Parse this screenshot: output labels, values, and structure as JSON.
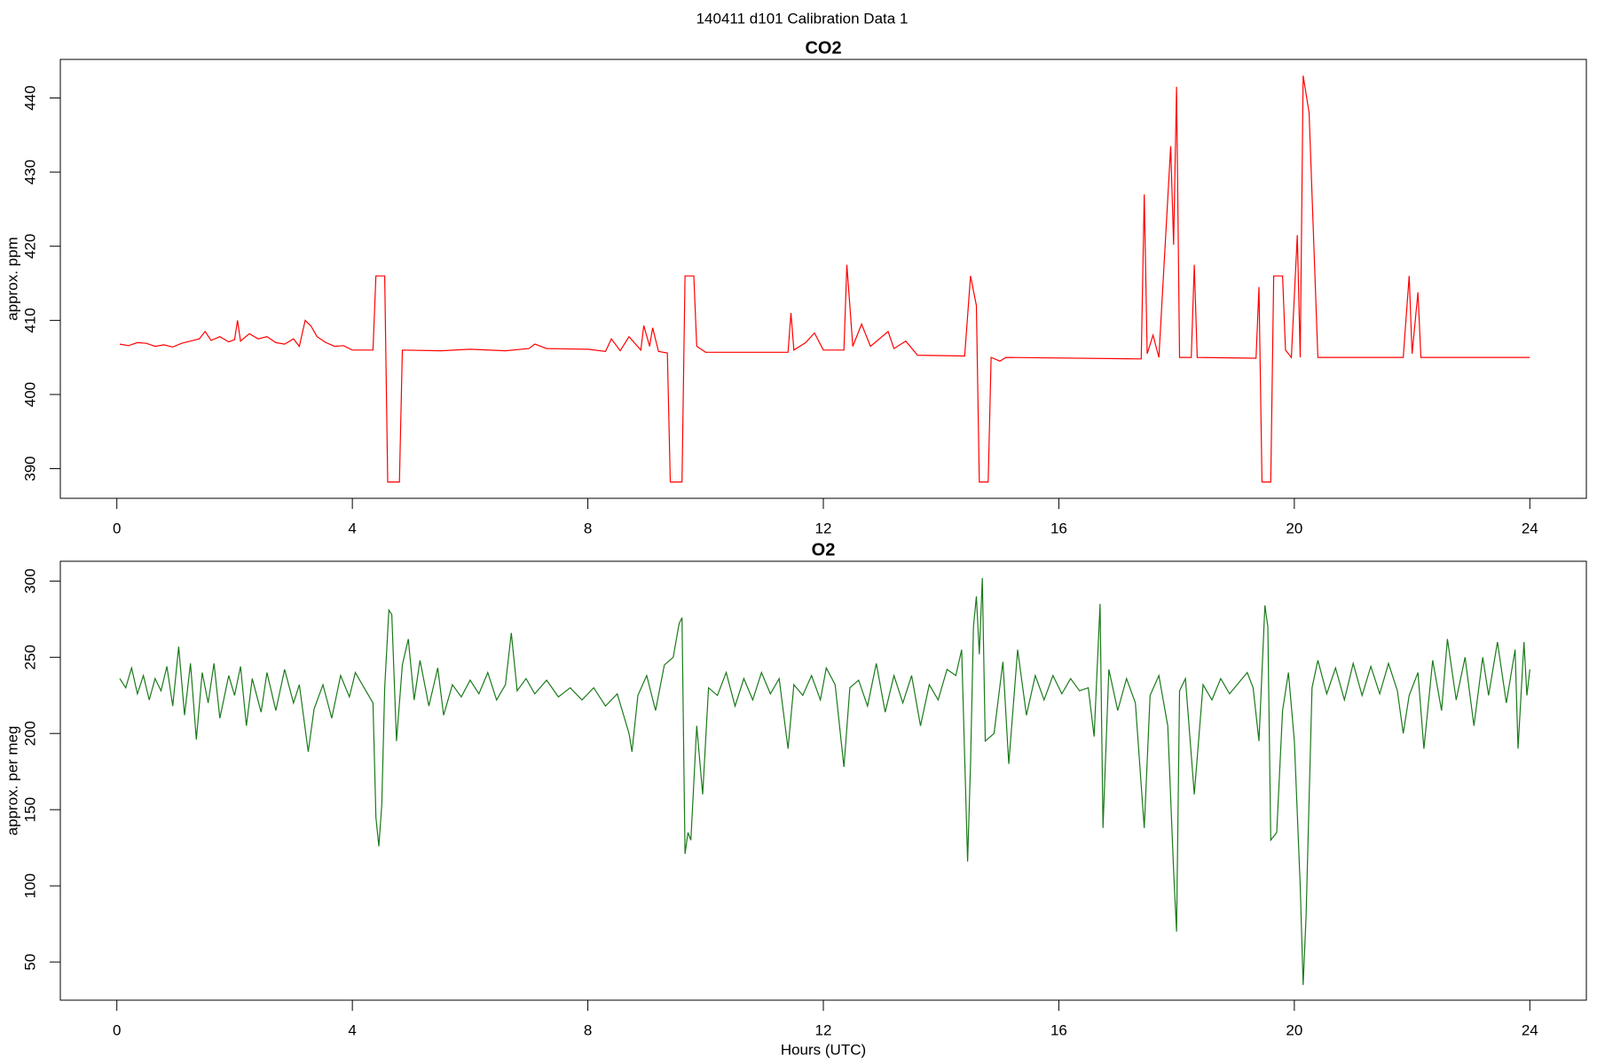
{
  "title": "140411   d101   Calibration Data 1",
  "chart_data": [
    {
      "type": "line",
      "title": "CO2",
      "ylabel": "approx. ppm",
      "color": "#ff0000",
      "xlim": [
        -0.96,
        24.96
      ],
      "ylim": [
        386.0,
        445.2
      ],
      "xticks": [
        0,
        4,
        8,
        12,
        16,
        20,
        24
      ],
      "yticks": [
        390,
        400,
        410,
        420,
        430,
        440
      ],
      "x": [
        0.05,
        0.2,
        0.35,
        0.5,
        0.65,
        0.8,
        0.95,
        1.1,
        1.25,
        1.4,
        1.5,
        1.6,
        1.75,
        1.9,
        2.0,
        2.05,
        2.1,
        2.25,
        2.4,
        2.55,
        2.7,
        2.85,
        3.0,
        3.1,
        3.2,
        3.3,
        3.4,
        3.55,
        3.7,
        3.85,
        4.0,
        4.35,
        4.4,
        4.55,
        4.6,
        4.8,
        4.85,
        5.5,
        6.0,
        6.6,
        7.0,
        7.1,
        7.3,
        8.0,
        8.3,
        8.4,
        8.55,
        8.7,
        8.9,
        8.95,
        9.05,
        9.1,
        9.2,
        9.35,
        9.4,
        9.6,
        9.65,
        9.8,
        9.85,
        10.0,
        11.4,
        11.45,
        11.5,
        11.7,
        11.85,
        12.0,
        12.35,
        12.4,
        12.5,
        12.65,
        12.8,
        13.1,
        13.2,
        13.4,
        13.6,
        14.4,
        14.5,
        14.6,
        14.65,
        14.8,
        14.85,
        15.0,
        15.1,
        17.4,
        17.45,
        17.5,
        17.6,
        17.7,
        17.9,
        17.95,
        18.0,
        18.05,
        18.25,
        18.3,
        18.35,
        19.35,
        19.4,
        19.45,
        19.6,
        19.65,
        19.8,
        19.85,
        19.95,
        20.05,
        20.1,
        20.15,
        20.25,
        20.4,
        21.85,
        21.95,
        22.0,
        22.1,
        22.15,
        24.0
      ],
      "values": [
        406.8,
        406.6,
        407.0,
        406.9,
        406.5,
        406.7,
        406.4,
        406.9,
        407.2,
        407.5,
        408.5,
        407.3,
        407.8,
        407.1,
        407.4,
        410,
        407.2,
        408.2,
        407.5,
        407.8,
        407.0,
        406.8,
        407.5,
        406.5,
        410,
        409.2,
        407.8,
        407.0,
        406.5,
        406.6,
        406.0,
        406.0,
        416,
        416,
        388.2,
        388.2,
        406,
        405.9,
        406.1,
        405.9,
        406.2,
        406.8,
        406.2,
        406.1,
        405.8,
        407.5,
        405.9,
        407.8,
        406,
        409.3,
        406.5,
        409,
        405.8,
        405.6,
        388.2,
        388.2,
        416,
        416,
        406.5,
        405.7,
        405.7,
        411,
        406,
        407,
        408.3,
        406,
        406,
        417.5,
        406.5,
        409.5,
        406.5,
        408.5,
        406.2,
        407.2,
        405.3,
        405.2,
        416,
        412,
        388.2,
        388.2,
        405,
        404.5,
        405,
        404.8,
        427,
        405.5,
        408,
        405,
        433.5,
        420.2,
        441.5,
        405,
        405,
        417.5,
        405,
        404.9,
        414.5,
        388.2,
        388.2,
        416,
        416,
        406,
        405,
        421.5,
        405,
        443,
        438,
        405,
        405,
        416,
        405.5,
        413.8,
        405,
        405
      ]
    },
    {
      "type": "line",
      "title": "O2",
      "ylabel": "approx. per meg",
      "xlabel": "Hours (UTC)",
      "color": "#1a7a1a",
      "xlim": [
        -0.96,
        24.96
      ],
      "ylim": [
        25,
        313
      ],
      "xticks": [
        0,
        4,
        8,
        12,
        16,
        20,
        24
      ],
      "yticks": [
        50,
        100,
        150,
        200,
        250,
        300
      ],
      "x": [
        0.05,
        0.15,
        0.25,
        0.35,
        0.45,
        0.55,
        0.65,
        0.75,
        0.85,
        0.95,
        1.05,
        1.15,
        1.25,
        1.35,
        1.45,
        1.55,
        1.65,
        1.75,
        1.9,
        2.0,
        2.1,
        2.2,
        2.3,
        2.45,
        2.55,
        2.7,
        2.85,
        3.0,
        3.1,
        3.25,
        3.35,
        3.5,
        3.65,
        3.8,
        3.95,
        4.05,
        4.2,
        4.35,
        4.4,
        4.45,
        4.5,
        4.55,
        4.62,
        4.67,
        4.75,
        4.85,
        4.95,
        5.05,
        5.15,
        5.3,
        5.45,
        5.55,
        5.7,
        5.85,
        6.0,
        6.15,
        6.3,
        6.45,
        6.6,
        6.7,
        6.8,
        6.95,
        7.1,
        7.3,
        7.5,
        7.7,
        7.9,
        8.1,
        8.3,
        8.5,
        8.7,
        8.75,
        8.85,
        9.0,
        9.15,
        9.3,
        9.45,
        9.55,
        9.6,
        9.65,
        9.7,
        9.75,
        9.85,
        9.95,
        10.05,
        10.2,
        10.35,
        10.5,
        10.65,
        10.8,
        10.95,
        11.1,
        11.25,
        11.4,
        11.5,
        11.65,
        11.8,
        11.95,
        12.05,
        12.2,
        12.35,
        12.45,
        12.6,
        12.75,
        12.9,
        13.05,
        13.2,
        13.35,
        13.5,
        13.65,
        13.8,
        13.95,
        14.1,
        14.25,
        14.35,
        14.45,
        14.5,
        14.55,
        14.6,
        14.65,
        14.7,
        14.75,
        14.9,
        15.05,
        15.15,
        15.3,
        15.45,
        15.6,
        15.75,
        15.9,
        16.05,
        16.2,
        16.35,
        16.5,
        16.6,
        16.7,
        16.75,
        16.85,
        17.0,
        17.15,
        17.3,
        17.45,
        17.55,
        17.7,
        17.85,
        17.95,
        18.0,
        18.05,
        18.15,
        18.3,
        18.45,
        18.6,
        18.75,
        18.9,
        19.05,
        19.2,
        19.3,
        19.4,
        19.5,
        19.55,
        19.6,
        19.7,
        19.8,
        19.9,
        20.0,
        20.1,
        20.15,
        20.2,
        20.3,
        20.4,
        20.55,
        20.7,
        20.85,
        21.0,
        21.15,
        21.3,
        21.45,
        21.6,
        21.75,
        21.85,
        21.95,
        22.1,
        22.2,
        22.35,
        22.5,
        22.6,
        22.75,
        22.9,
        23.05,
        23.2,
        23.3,
        23.45,
        23.6,
        23.75,
        23.8,
        23.9,
        23.95,
        24.0
      ],
      "values": [
        236,
        230,
        243,
        226,
        238,
        222,
        236,
        228,
        244,
        218,
        257,
        212,
        246,
        196,
        240,
        220,
        246,
        210,
        238,
        225,
        244,
        205,
        236,
        214,
        240,
        215,
        242,
        220,
        232,
        188,
        216,
        232,
        210,
        238,
        224,
        240,
        230,
        220,
        145,
        126,
        153,
        230,
        281,
        278,
        195,
        245,
        262,
        222,
        248,
        218,
        243,
        212,
        232,
        224,
        235,
        226,
        240,
        222,
        232,
        266,
        228,
        236,
        226,
        235,
        224,
        230,
        222,
        230,
        218,
        226,
        200,
        188,
        225,
        238,
        215,
        245,
        250,
        272,
        276,
        121,
        135,
        130,
        205,
        160,
        230,
        225,
        240,
        218,
        236,
        222,
        240,
        226,
        236,
        190,
        232,
        225,
        238,
        222,
        243,
        232,
        178,
        230,
        235,
        218,
        246,
        214,
        238,
        220,
        238,
        205,
        232,
        222,
        242,
        238,
        255,
        116,
        180,
        270,
        290,
        252,
        302,
        195,
        200,
        247,
        180,
        255,
        212,
        238,
        222,
        238,
        226,
        236,
        228,
        230,
        198,
        285,
        138,
        242,
        215,
        236,
        220,
        138,
        225,
        238,
        205,
        110,
        70,
        228,
        236,
        160,
        232,
        222,
        236,
        226,
        233,
        240,
        230,
        195,
        284,
        270,
        130,
        135,
        215,
        240,
        195,
        100,
        35,
        80,
        230,
        248,
        226,
        243,
        222,
        246,
        225,
        244,
        226,
        246,
        228,
        200,
        225,
        240,
        190,
        248,
        215,
        262,
        222,
        250,
        205,
        250,
        225,
        260,
        220,
        255,
        190,
        260,
        225,
        242
      ]
    }
  ]
}
